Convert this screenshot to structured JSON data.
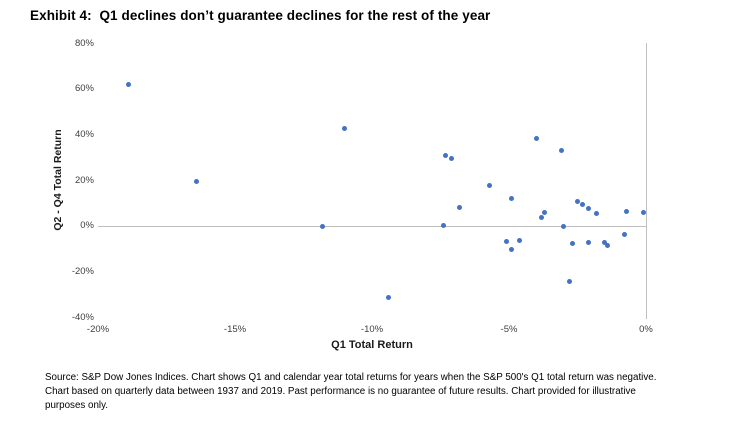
{
  "title": "Exhibit 4:  Q1 declines don’t guarantee declines for the rest of the year",
  "chart_data": {
    "type": "scatter",
    "title": "Exhibit 4:  Q1 declines don’t guarantee declines for the rest of the year",
    "xlabel": "Q1 Total Return",
    "ylabel": "Q2 - Q4 Total Return",
    "xlim": [
      -20,
      0
    ],
    "ylim": [
      -40,
      80
    ],
    "x_ticks": [
      -20,
      -15,
      -10,
      -5,
      0
    ],
    "y_ticks": [
      80,
      60,
      40,
      20,
      0,
      -20,
      -40
    ],
    "tick_format": "percent",
    "grid": false,
    "legend": "none",
    "marker_color": "#4472C4",
    "axis_line_color": "#BFBFBF",
    "points": [
      [
        -18.9,
        61.8
      ],
      [
        -16.4,
        19.3
      ],
      [
        -11.8,
        -0.3
      ],
      [
        -11.0,
        42.5
      ],
      [
        -9.4,
        -31.4
      ],
      [
        -7.4,
        0.1
      ],
      [
        -7.3,
        30.9
      ],
      [
        -7.1,
        29.2
      ],
      [
        -6.8,
        8.0
      ],
      [
        -5.7,
        17.8
      ],
      [
        -5.1,
        -7.0
      ],
      [
        -4.9,
        11.8
      ],
      [
        -4.9,
        -10.4
      ],
      [
        -4.6,
        -6.6
      ],
      [
        -4.0,
        38.2
      ],
      [
        -3.8,
        3.6
      ],
      [
        -3.7,
        5.7
      ],
      [
        -3.1,
        33.1
      ],
      [
        -3.0,
        -0.2
      ],
      [
        -2.8,
        -24.5
      ],
      [
        -2.7,
        -8.0
      ],
      [
        -2.5,
        10.8
      ],
      [
        -2.3,
        9.3
      ],
      [
        -2.1,
        7.3
      ],
      [
        -2.1,
        -7.2
      ],
      [
        -1.8,
        5.5
      ],
      [
        -1.5,
        -7.4
      ],
      [
        -1.4,
        -8.9
      ],
      [
        -0.8,
        -3.9
      ],
      [
        -0.7,
        6.1
      ],
      [
        -0.1,
        5.7
      ]
    ]
  },
  "footnote": {
    "lines": [
      "Source:  S&P Dow Jones Indices.  Chart shows Q1 and calendar year total returns for years when the S&P 500's Q1 total return was negative.",
      "Chart based on quarterly data between 1937 and 2019.  Past performance is no guarantee of future results.  Chart provided for illustrative",
      "purposes only."
    ]
  }
}
